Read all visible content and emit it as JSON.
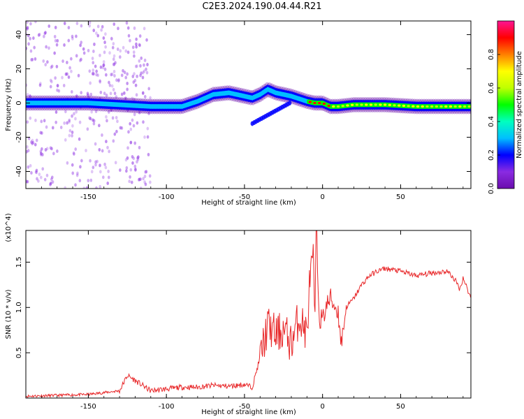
{
  "title": "C2E3.2024.190.04.44.R21",
  "colors": {
    "snr_line": "#e8282a",
    "spectrogram_cmap": [
      "#6a0dad",
      "#8a2be2",
      "#0000ff",
      "#00bfff",
      "#00ffbf",
      "#00ff00",
      "#bfff00",
      "#ffff00",
      "#ff7f00",
      "#ff0000",
      "#ff1493"
    ]
  },
  "chart_data": [
    {
      "type": "heatmap",
      "name": "spectrogram",
      "xlabel": "Height of straight line (km)",
      "ylabel": "Frequency (Hz)",
      "xlim": [
        -190,
        95
      ],
      "ylim": [
        -50,
        48
      ],
      "xticks": [
        -150,
        -100,
        -50,
        0,
        50
      ],
      "yticks": [
        -40,
        -20,
        0,
        20,
        40
      ],
      "colorbar": {
        "label": "Normalized spectral amplitude",
        "range": [
          0,
          1
        ],
        "ticks": [
          "0.0",
          "0.2",
          "0.4",
          "0.6",
          "0.8"
        ]
      },
      "ridge": {
        "x": [
          -190,
          -170,
          -150,
          -130,
          -110,
          -100,
          -90,
          -80,
          -70,
          -60,
          -50,
          -45,
          -40,
          -35,
          -30,
          -20,
          -10,
          -5,
          0,
          5,
          10,
          20,
          40,
          60,
          80,
          95
        ],
        "y": [
          0,
          0,
          0,
          -1,
          -2,
          -2,
          -2,
          1,
          5,
          6,
          4,
          3,
          5,
          8,
          6,
          4,
          1,
          0,
          0,
          -2,
          -2,
          -1,
          -1,
          -2,
          -2,
          -2
        ]
      }
    },
    {
      "type": "line",
      "name": "snr",
      "xlabel": "Height of straight line (km)",
      "ylabel": "SNR (10 * v/v)",
      "scale_label": "(x10^4)",
      "xlim": [
        -190,
        95
      ],
      "ylim": [
        0,
        1.85
      ],
      "xticks": [
        -150,
        -100,
        -50,
        0,
        50
      ],
      "yticks": [
        "0.5",
        "1.0",
        "1.5"
      ],
      "series": [
        {
          "x": [
            -190,
            -170,
            -150,
            -130,
            -125,
            -110,
            -100,
            -90,
            -80,
            -70,
            -60,
            -50,
            -45,
            -40,
            -35,
            -30,
            -25,
            -20,
            -15,
            -10,
            -8,
            -6,
            -5,
            -4,
            -2,
            0,
            2,
            5,
            10,
            12,
            15,
            20,
            25,
            30,
            35,
            40,
            50,
            60,
            70,
            80,
            85,
            88,
            90,
            95
          ],
          "y": [
            0.02,
            0.03,
            0.04,
            0.08,
            0.25,
            0.08,
            0.1,
            0.12,
            0.12,
            0.14,
            0.13,
            0.15,
            0.12,
            0.45,
            0.8,
            0.7,
            0.75,
            0.6,
            0.9,
            0.7,
            1.35,
            1.5,
            0.8,
            1.85,
            0.9,
            0.85,
            1.0,
            1.1,
            0.95,
            0.6,
            1.0,
            1.1,
            1.25,
            1.35,
            1.4,
            1.43,
            1.4,
            1.35,
            1.38,
            1.4,
            1.3,
            1.2,
            1.33,
            1.1
          ]
        }
      ]
    }
  ]
}
